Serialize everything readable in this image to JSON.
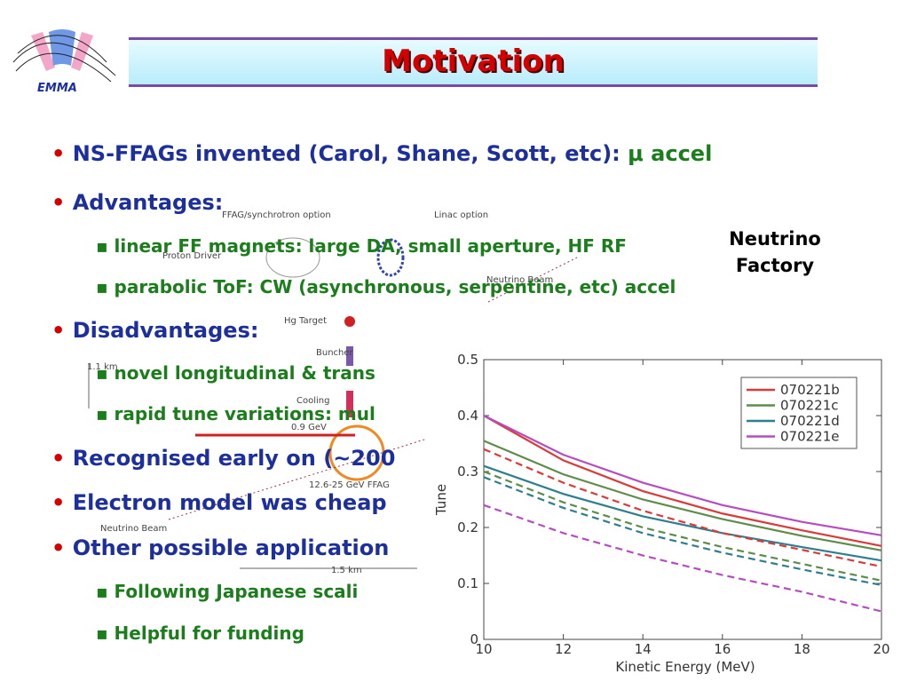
{
  "header": {
    "logo": "EMMA",
    "title": "Motivation"
  },
  "bullets": [
    {
      "level": 1,
      "text": "NS-FFAGs invented (Carol, Shane, Scott, etc):",
      "accent": "μ accel"
    },
    {
      "level": 1,
      "text": "Advantages:"
    },
    {
      "level": 2,
      "text": "linear FF magnets: large DA, small aperture, HF RF"
    },
    {
      "level": 2,
      "text": "parabolic ToF: CW (asynchronous, serpentine, etc) accel"
    },
    {
      "level": 1,
      "text": "Disadvantages:"
    },
    {
      "level": 2,
      "text": "novel longitudinal & trans"
    },
    {
      "level": 2,
      "text": "rapid tune variations: mul"
    },
    {
      "level": 1,
      "text": "Recognised early on (~200"
    },
    {
      "level": 1,
      "text": "Electron model was cheap"
    },
    {
      "level": 1,
      "text": "Other possible application"
    },
    {
      "level": 2,
      "text": "Following Japanese scali"
    },
    {
      "level": 2,
      "text": "Helpful for funding"
    }
  ],
  "diagram": {
    "caption": "Neutrino Factory",
    "labels": [
      "FFAG/synchrotron option",
      "Linac option",
      "Proton Driver",
      "Neutrino Beam",
      "Hg Target",
      "Buncher",
      "Cooling",
      "1.1 km",
      "0.9 GeV",
      "12.6-25 GeV FFAG",
      "Neutrino Beam",
      "1.5 km"
    ]
  },
  "chart_data": {
    "type": "line",
    "xlabel": "Kinetic Energy (MeV)",
    "ylabel": "Tune",
    "x": [
      10,
      12,
      14,
      16,
      18,
      20
    ],
    "xlim": [
      10,
      20
    ],
    "xticks": [
      10,
      12,
      14,
      16,
      18,
      20
    ],
    "ylim": [
      0,
      0.5
    ],
    "yticks": [
      0,
      0.1,
      0.2,
      0.3,
      0.4,
      0.5
    ],
    "grid": false,
    "legend": "upper right",
    "series": [
      {
        "name": "070221b",
        "color": "#d93a3a",
        "values": [
          0.4,
          0.32,
          0.265,
          0.225,
          0.195,
          0.167
        ]
      },
      {
        "name": "070221c",
        "color": "#5e8c4a",
        "values": [
          0.355,
          0.295,
          0.25,
          0.215,
          0.185,
          0.159
        ]
      },
      {
        "name": "070221d",
        "color": "#2e7f8e",
        "values": [
          0.31,
          0.26,
          0.22,
          0.19,
          0.165,
          0.141
        ]
      },
      {
        "name": "070221e",
        "color": "#b54cc0",
        "values": [
          0.4,
          0.33,
          0.28,
          0.24,
          0.21,
          0.186
        ]
      },
      {
        "color": "#d93a3a",
        "dashed": true,
        "values": [
          0.34,
          0.28,
          0.23,
          0.19,
          0.16,
          0.13
        ]
      },
      {
        "color": "#5e8c4a",
        "dashed": true,
        "values": [
          0.3,
          0.245,
          0.2,
          0.165,
          0.135,
          0.105
        ]
      },
      {
        "color": "#2e7f8e",
        "dashed": true,
        "values": [
          0.29,
          0.235,
          0.19,
          0.155,
          0.125,
          0.097
        ]
      },
      {
        "color": "#b54cc0",
        "dashed": true,
        "values": [
          0.24,
          0.19,
          0.15,
          0.115,
          0.085,
          0.05
        ]
      }
    ]
  }
}
